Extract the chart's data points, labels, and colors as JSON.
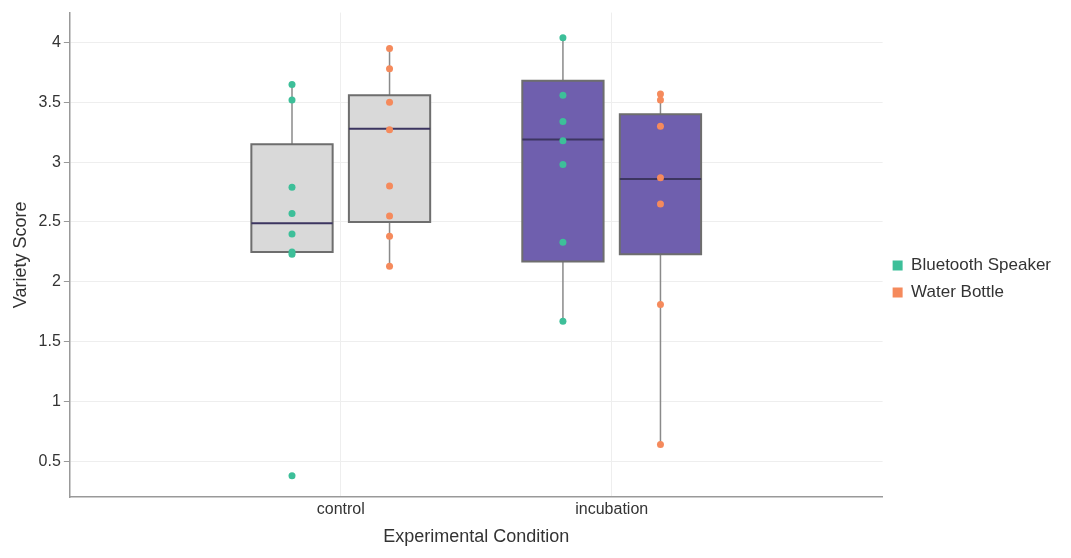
{
  "chart_data": {
    "type": "box",
    "xlabel": "Experimental Condition",
    "ylabel": "Variety Score",
    "categories": [
      "control",
      "incubation"
    ],
    "ylim": [
      0.2,
      4.25
    ],
    "yticks": [
      0.5,
      1,
      1.5,
      2,
      2.5,
      3,
      3.5,
      4
    ],
    "grid": true,
    "legend": "right",
    "marker": "circle",
    "series": [
      {
        "type": "box",
        "colors": [
          "#d9d9d9",
          "#6f5fae"
        ],
        "boxes": [
          {
            "low": 2.23,
            "q1": 2.25,
            "median": 2.49,
            "q3": 3.15,
            "high": 3.65
          },
          {
            "low": 1.67,
            "q1": 2.17,
            "median": 3.19,
            "q3": 3.68,
            "high": 4.04
          }
        ]
      },
      {
        "type": "box",
        "colors": [
          "#d9d9d9",
          "#6f5fae"
        ],
        "boxes": [
          {
            "low": 2.13,
            "q1": 2.5,
            "median": 3.28,
            "q3": 3.56,
            "high": 3.95
          },
          {
            "low": 0.64,
            "q1": 2.23,
            "median": 2.86,
            "q3": 3.4,
            "high": 3.57
          }
        ]
      },
      {
        "type": "scatter",
        "name": "Bluetooth Speaker",
        "color": "#3dbf99",
        "x": [
          "control",
          "control",
          "control",
          "control",
          "control",
          "control",
          "control",
          "control",
          "incubation",
          "incubation",
          "incubation",
          "incubation",
          "incubation",
          "incubation",
          "incubation"
        ],
        "values": [
          3.65,
          3.52,
          2.79,
          2.57,
          2.4,
          2.25,
          2.23,
          0.38,
          4.04,
          3.56,
          3.34,
          3.18,
          2.98,
          2.33,
          1.67
        ]
      },
      {
        "type": "scatter",
        "name": "Water Bottle",
        "color": "#f58a5c",
        "x": [
          "control",
          "control",
          "control",
          "control",
          "control",
          "control",
          "control",
          "control",
          "incubation",
          "incubation",
          "incubation",
          "incubation",
          "incubation",
          "incubation",
          "incubation"
        ],
        "values": [
          3.95,
          3.78,
          3.5,
          3.27,
          2.8,
          2.55,
          2.38,
          2.13,
          3.57,
          3.52,
          3.3,
          2.87,
          2.65,
          1.81,
          0.64
        ]
      }
    ]
  }
}
